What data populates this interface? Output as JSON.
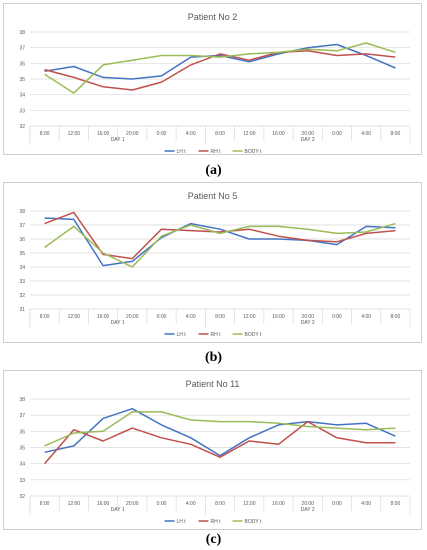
{
  "captions": [
    "(a)",
    "(b)",
    "(c)"
  ],
  "chart_data": [
    {
      "type": "line",
      "title": "Patient No 2",
      "categories": [
        "8:00",
        "12:00",
        "16:00",
        "20:00",
        "0:00",
        "4:00",
        "8:00",
        "12:00",
        "16:00",
        "20:00",
        "0:00",
        "4:00",
        "8:00"
      ],
      "day_labels": [
        "DAY 1",
        "DAY 2"
      ],
      "yticks": [
        32,
        33,
        34,
        35,
        36,
        37,
        38
      ],
      "ylim": [
        32,
        38
      ],
      "grid": true,
      "legend_position": "bottom",
      "series": [
        {
          "name": "LH t",
          "color": "#4472c4",
          "values": [
            35.5,
            35.8,
            35.1,
            35.0,
            35.2,
            36.4,
            36.5,
            36.1,
            36.6,
            37.0,
            37.2,
            36.5,
            35.7
          ]
        },
        {
          "name": "RH t",
          "color": "#c0504d",
          "values": [
            35.6,
            35.1,
            34.5,
            34.3,
            34.8,
            35.9,
            36.6,
            36.2,
            36.7,
            36.8,
            36.5,
            36.6,
            36.4
          ]
        },
        {
          "name": "BODY t",
          "color": "#9bbb59",
          "values": [
            35.3,
            34.1,
            35.9,
            36.2,
            36.5,
            36.5,
            36.4,
            36.6,
            36.7,
            36.9,
            36.8,
            37.3,
            36.7
          ]
        }
      ]
    },
    {
      "type": "line",
      "title": "Patient No 5",
      "categories": [
        "8:00",
        "12:00",
        "16:00",
        "20:00",
        "0:00",
        "4:00",
        "8:00",
        "12:00",
        "16:00",
        "20:00",
        "0:00",
        "4:00",
        "8:00"
      ],
      "day_labels": [
        "DAY 1",
        "DAY 2"
      ],
      "yticks": [
        31,
        32,
        33,
        34,
        35,
        36,
        37,
        38
      ],
      "ylim": [
        31,
        38
      ],
      "grid": true,
      "legend_position": "bottom",
      "series": [
        {
          "name": "LH t",
          "color": "#4472c4",
          "values": [
            37.5,
            37.4,
            34.1,
            34.4,
            36.1,
            37.1,
            36.7,
            36.0,
            36.0,
            35.9,
            35.6,
            36.9,
            36.8
          ]
        },
        {
          "name": "RH t",
          "color": "#c0504d",
          "values": [
            37.1,
            37.9,
            34.9,
            34.6,
            36.7,
            36.6,
            36.5,
            36.7,
            36.2,
            35.9,
            35.8,
            36.4,
            36.6
          ]
        },
        {
          "name": "BODY t",
          "color": "#9bbb59",
          "values": [
            35.4,
            36.9,
            35.0,
            34.0,
            36.2,
            37.0,
            36.4,
            36.9,
            36.9,
            36.7,
            36.4,
            36.5,
            37.1
          ]
        }
      ]
    },
    {
      "type": "line",
      "title": "Patient No 11",
      "categories": [
        "8:00",
        "12:00",
        "16:00",
        "20:00",
        "0:00",
        "4:00",
        "8:00",
        "12:00",
        "16:00",
        "20:00",
        "0:00",
        "4:00",
        "8:00"
      ],
      "day_labels": [
        "DAY 1",
        "DAY 2"
      ],
      "yticks": [
        32,
        33,
        34,
        35,
        36,
        37,
        38
      ],
      "ylim": [
        32,
        38
      ],
      "grid": true,
      "legend_position": "bottom",
      "series": [
        {
          "name": "LH t",
          "color": "#4472c4",
          "values": [
            34.7,
            35.1,
            36.8,
            37.4,
            36.4,
            35.6,
            34.5,
            35.6,
            36.4,
            36.6,
            36.4,
            36.5,
            35.7
          ]
        },
        {
          "name": "RH t",
          "color": "#c0504d",
          "values": [
            34.0,
            36.1,
            35.4,
            36.2,
            35.6,
            35.2,
            34.4,
            35.4,
            35.2,
            36.6,
            35.6,
            35.3,
            35.3
          ]
        },
        {
          "name": "BODY t",
          "color": "#9bbb59",
          "values": [
            35.1,
            35.9,
            36.0,
            37.2,
            37.2,
            36.7,
            36.6,
            36.6,
            36.5,
            36.3,
            36.2,
            36.1,
            36.2
          ]
        }
      ]
    }
  ]
}
